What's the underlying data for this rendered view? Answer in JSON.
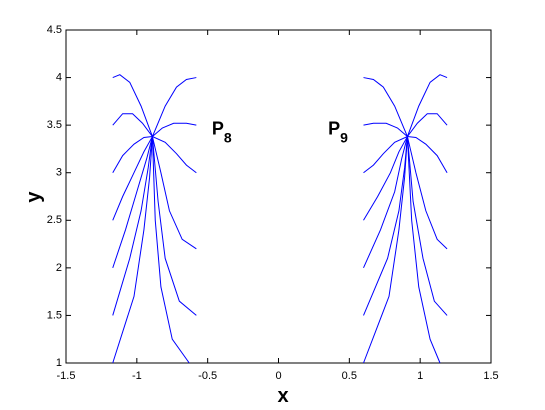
{
  "chart_data": {
    "type": "line",
    "x_label": "x",
    "y_label": "y",
    "color": "#0000ff",
    "xlim": [
      -1.5,
      1.5
    ],
    "ylim": [
      1,
      4.5
    ],
    "xticks": [
      -1.5,
      -1,
      -0.5,
      0,
      0.5,
      1,
      1.5
    ],
    "yticks": [
      1,
      1.5,
      2,
      2.5,
      3,
      3.5,
      4,
      4.5
    ],
    "annotations": [
      {
        "text": "P",
        "sub": "8",
        "x": -0.47,
        "y": 3.4
      },
      {
        "text": "P",
        "sub": "9",
        "x": 0.35,
        "y": 3.4
      }
    ],
    "series": [
      {
        "x": [
          -1.17,
          -1.12,
          -1.05,
          -0.97,
          -0.89,
          -0.8,
          -0.72,
          -0.65,
          -0.58
        ],
        "values": [
          4.0,
          4.03,
          3.95,
          3.7,
          3.38,
          3.7,
          3.9,
          3.98,
          4.0
        ]
      },
      {
        "x": [
          -1.17,
          -1.1,
          -1.03,
          -0.96,
          -0.89,
          -0.82,
          -0.74,
          -0.65,
          -0.58
        ],
        "values": [
          3.5,
          3.62,
          3.62,
          3.52,
          3.38,
          3.47,
          3.52,
          3.52,
          3.5
        ]
      },
      {
        "x": [
          -1.17,
          -1.1,
          -1.02,
          -0.95,
          -0.89,
          -0.8,
          -0.72,
          -0.65,
          -0.58
        ],
        "values": [
          3.0,
          3.18,
          3.3,
          3.37,
          3.38,
          3.32,
          3.2,
          3.08,
          3.0
        ]
      },
      {
        "x": [
          -1.17,
          -1.1,
          -1.02,
          -0.95,
          -0.89,
          -0.83,
          -0.77,
          -0.68,
          -0.58
        ],
        "values": [
          2.5,
          2.75,
          3.0,
          3.22,
          3.38,
          3.0,
          2.6,
          2.3,
          2.2
        ]
      },
      {
        "x": [
          -1.17,
          -1.08,
          -1.0,
          -0.93,
          -0.89,
          -0.85,
          -0.8,
          -0.7,
          -0.58
        ],
        "values": [
          2.0,
          2.4,
          2.8,
          3.15,
          3.38,
          2.7,
          2.1,
          1.65,
          1.5
        ]
      },
      {
        "x": [
          -1.17,
          -1.05,
          -0.97,
          -0.92,
          -0.89,
          -0.87,
          -0.83,
          -0.75,
          -0.63
        ],
        "values": [
          1.5,
          2.1,
          2.6,
          3.05,
          3.38,
          2.5,
          1.8,
          1.25,
          1.0
        ]
      },
      {
        "x": [
          -1.17,
          -1.02,
          -0.95,
          -0.91,
          -0.89
        ],
        "values": [
          1.0,
          1.7,
          2.4,
          2.95,
          3.38
        ]
      },
      {
        "x": [
          1.19,
          1.14,
          1.07,
          0.99,
          0.91,
          0.82,
          0.74,
          0.67,
          0.6
        ],
        "values": [
          4.0,
          4.03,
          3.95,
          3.7,
          3.38,
          3.7,
          3.9,
          3.98,
          4.0
        ]
      },
      {
        "x": [
          1.19,
          1.12,
          1.05,
          0.98,
          0.91,
          0.84,
          0.76,
          0.67,
          0.6
        ],
        "values": [
          3.5,
          3.62,
          3.62,
          3.52,
          3.38,
          3.47,
          3.52,
          3.52,
          3.5
        ]
      },
      {
        "x": [
          1.19,
          1.12,
          1.04,
          0.97,
          0.91,
          0.82,
          0.74,
          0.67,
          0.6
        ],
        "values": [
          3.0,
          3.18,
          3.3,
          3.37,
          3.38,
          3.32,
          3.2,
          3.08,
          3.0
        ]
      },
      {
        "x": [
          1.19,
          1.12,
          1.04,
          0.97,
          0.91,
          0.85,
          0.79,
          0.7,
          0.6
        ],
        "values": [
          2.2,
          2.3,
          2.6,
          3.0,
          3.38,
          3.22,
          3.0,
          2.75,
          2.5
        ]
      },
      {
        "x": [
          1.19,
          1.1,
          1.02,
          0.95,
          0.91,
          0.87,
          0.82,
          0.72,
          0.6
        ],
        "values": [
          1.5,
          1.65,
          2.1,
          2.7,
          3.38,
          3.15,
          2.8,
          2.4,
          2.0
        ]
      },
      {
        "x": [
          1.14,
          1.07,
          0.99,
          0.94,
          0.91,
          0.89,
          0.85,
          0.77,
          0.6
        ],
        "values": [
          1.0,
          1.25,
          1.8,
          2.5,
          3.38,
          3.05,
          2.6,
          2.1,
          1.5
        ]
      },
      {
        "x": [
          0.91,
          0.89,
          0.85,
          0.78,
          0.6
        ],
        "values": [
          3.38,
          2.95,
          2.4,
          1.7,
          1.0
        ]
      }
    ]
  }
}
